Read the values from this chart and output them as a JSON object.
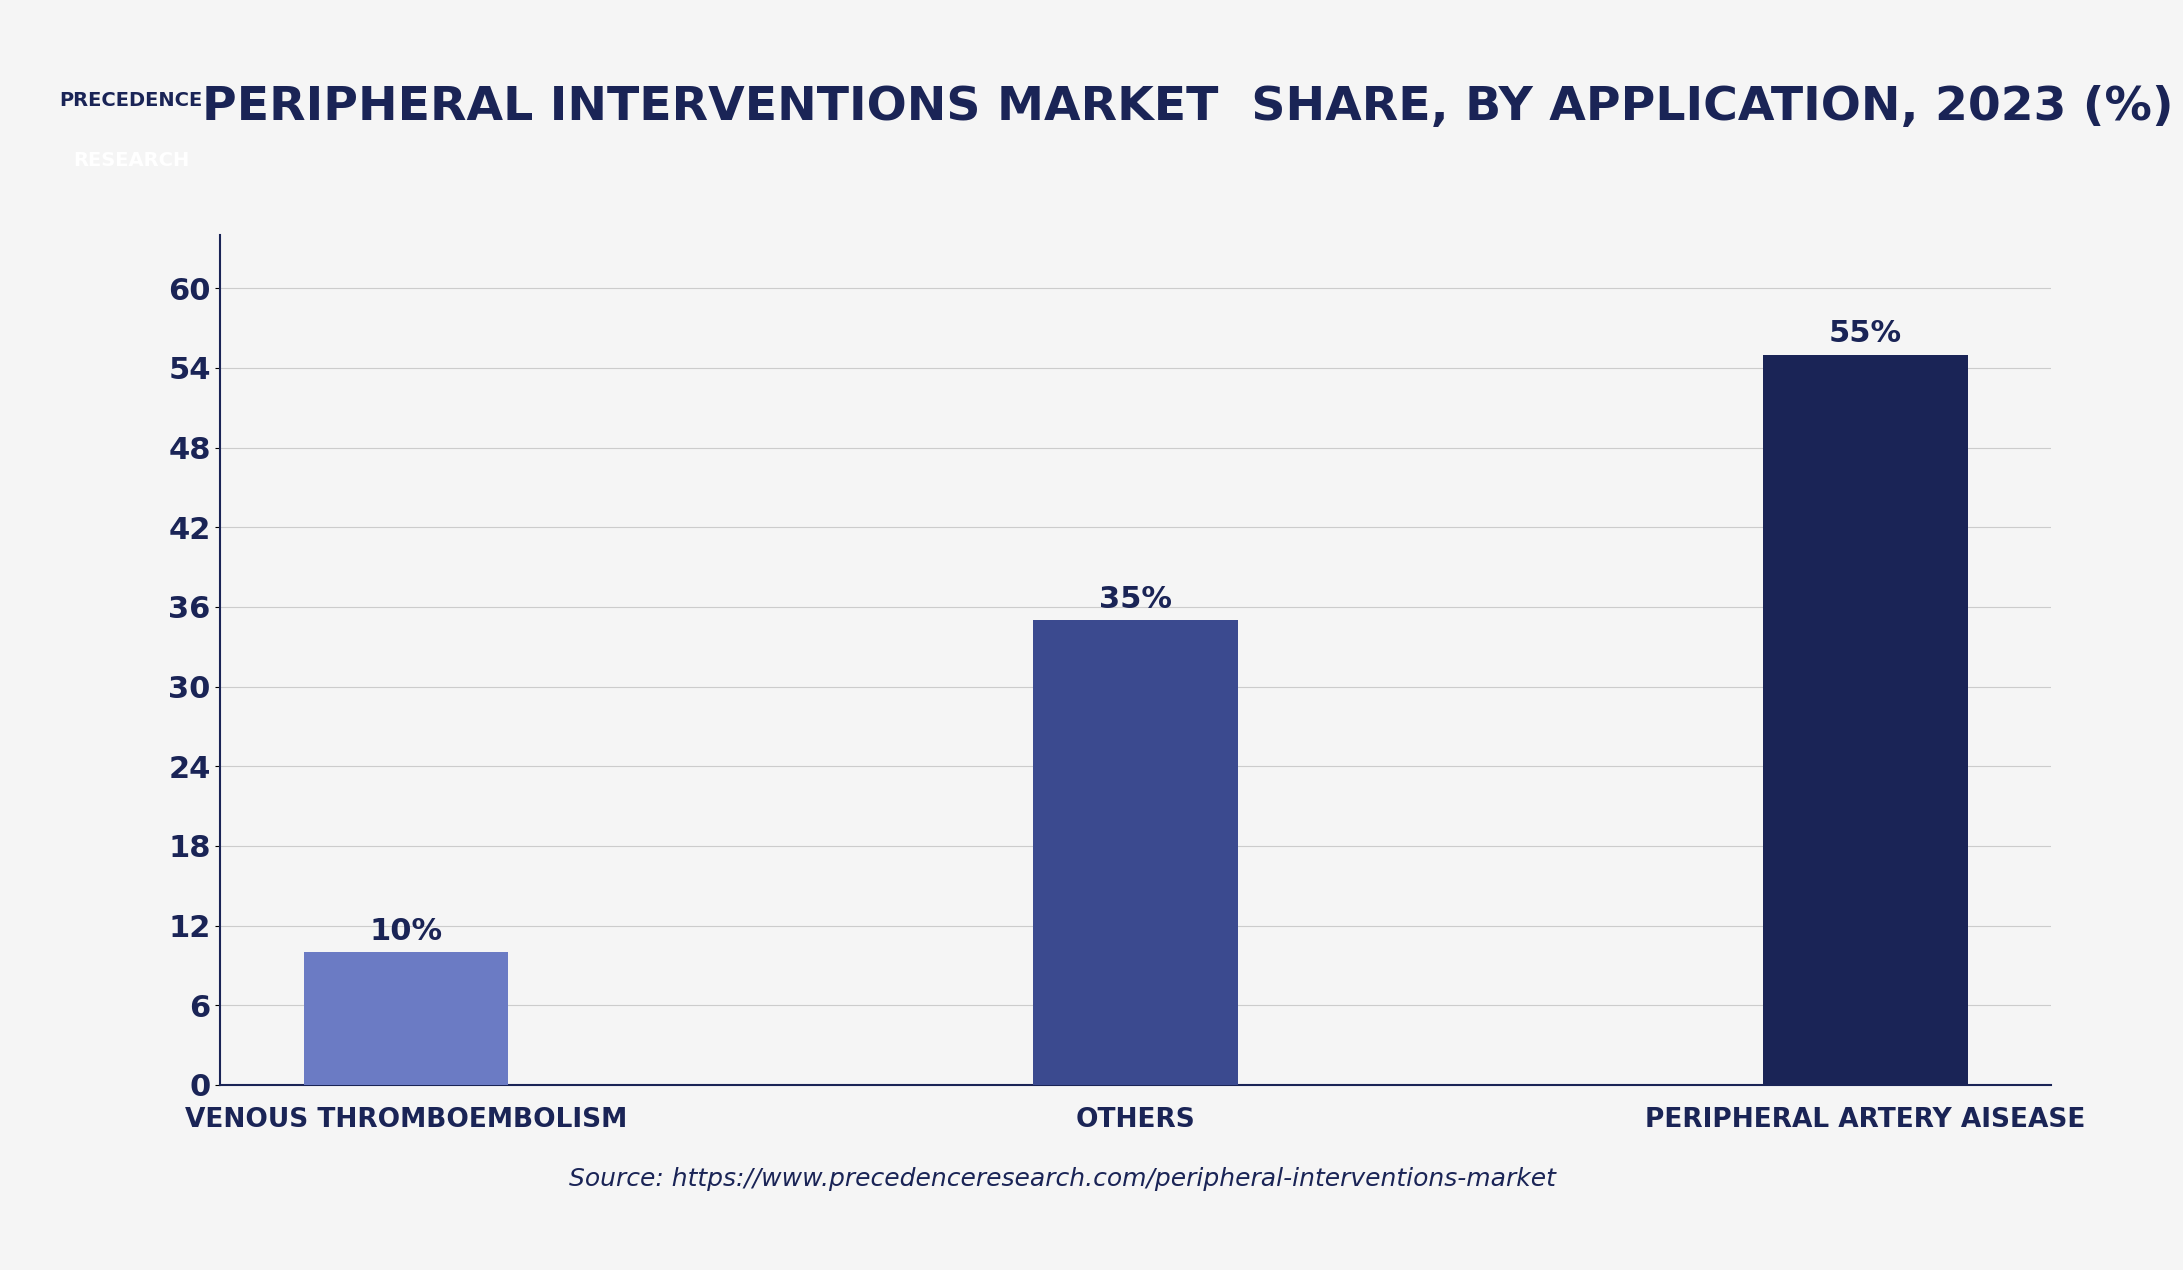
{
  "title": "PERIPHERAL INTERVENTIONS MARKET  SHARE, BY APPLICATION, 2023 (%)",
  "categories": [
    "VENOUS THROMBOEMBOLISM",
    "OTHERS",
    "PERIPHERAL ARTERY AISEASE"
  ],
  "values": [
    10,
    35,
    55
  ],
  "bar_colors": [
    "#6B7BC4",
    "#3B4A8F",
    "#1A2456"
  ],
  "label_values": [
    "10%",
    "35%",
    "55%"
  ],
  "yticks": [
    0,
    6,
    12,
    18,
    24,
    30,
    36,
    42,
    48,
    54,
    60
  ],
  "ylim": [
    0,
    64
  ],
  "background_color": "#F5F5F5",
  "title_color": "#1A2456",
  "axis_color": "#1A2456",
  "tick_color": "#1A2456",
  "grid_color": "#CCCCCC",
  "source_text": "Source: https://www.precedenceresearch.com/peripheral-interventions-market",
  "title_fontsize": 34,
  "tick_fontsize": 22,
  "label_fontsize": 22,
  "xtick_fontsize": 19,
  "source_fontsize": 18,
  "logo_bg_color": "#1A2456",
  "logo_top_bg": "#FFFFFF",
  "border_color": "#1A2456"
}
